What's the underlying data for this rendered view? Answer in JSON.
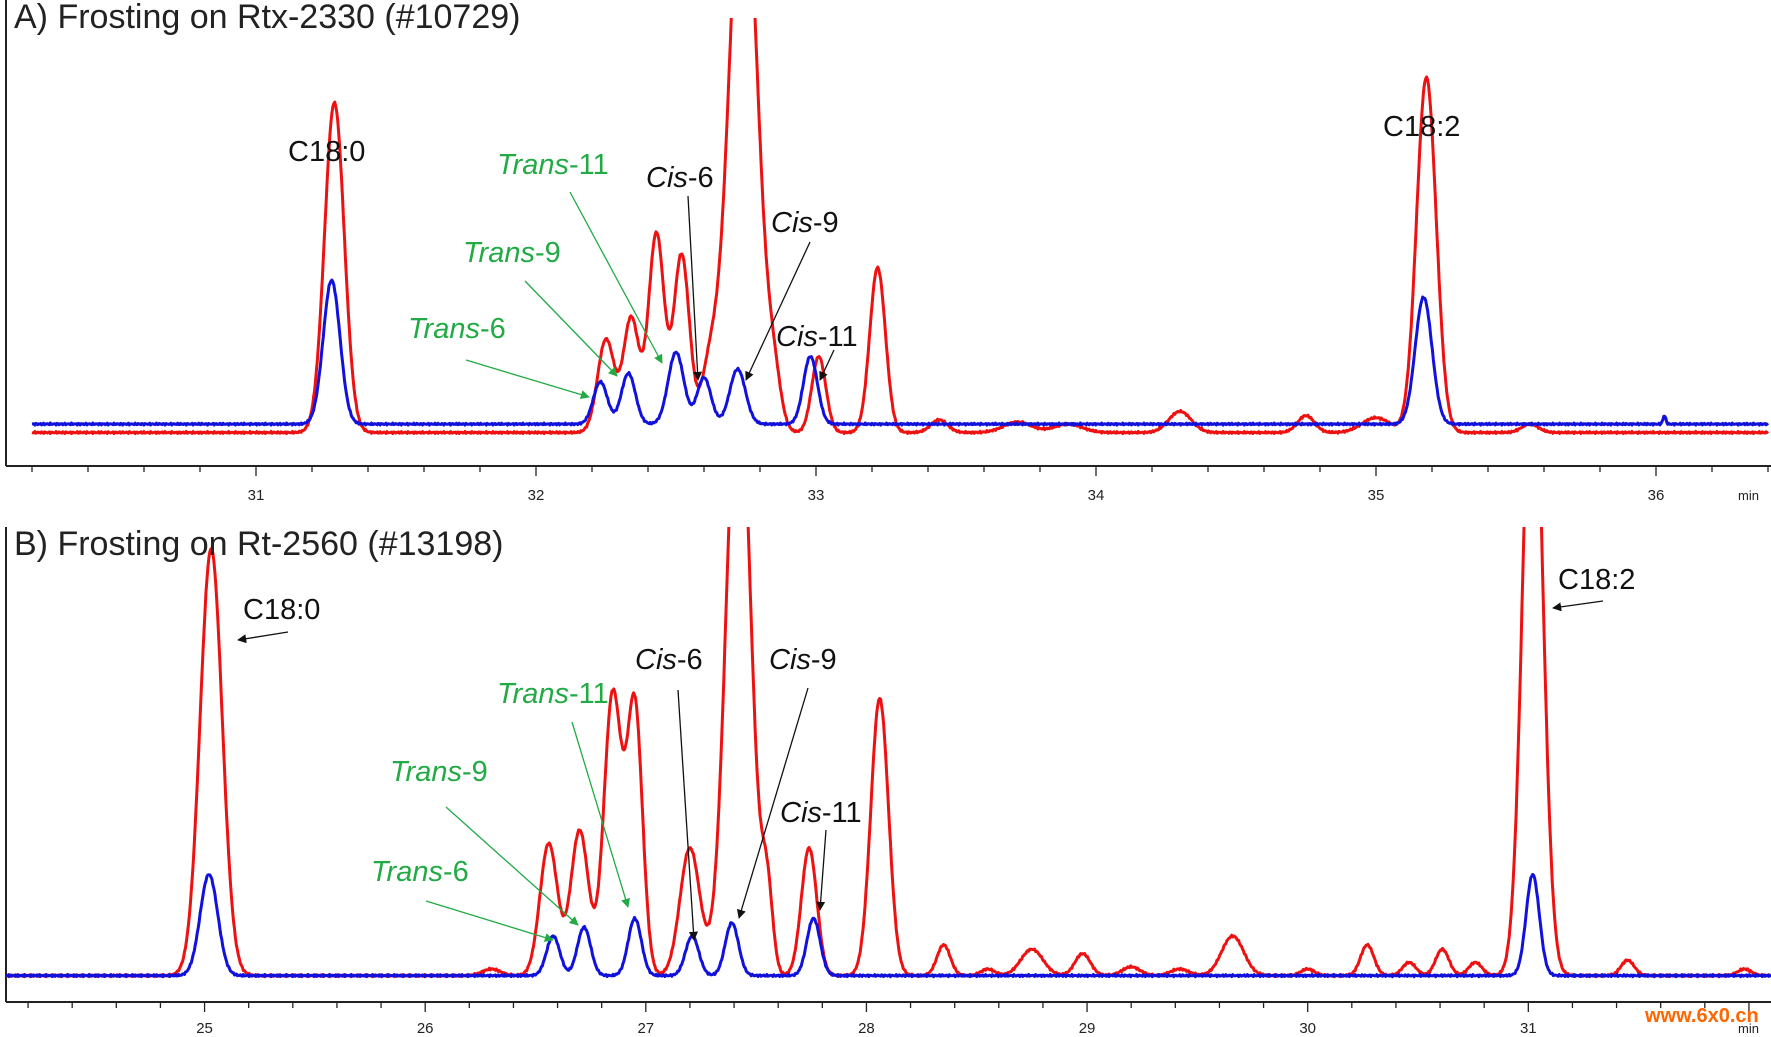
{
  "chart_data": [
    {
      "type": "line",
      "title": "A) Frosting on Rtx-2330 (#10729)",
      "x_unit": "min",
      "xlim": [
        30.2,
        36.4
      ],
      "ylim": [
        0,
        100
      ],
      "x_ticks": [
        31,
        32,
        33,
        34,
        35,
        36
      ],
      "colors": {
        "red": "#ee1111",
        "blue": "#1111dd",
        "green": "#22aa44"
      },
      "series": [
        {
          "color": "#ee1111",
          "baseline": 2,
          "peaks": [
            {
              "x": 31.28,
              "h": 78,
              "w": 0.035
            },
            {
              "x": 32.25,
              "h": 22,
              "w": 0.03
            },
            {
              "x": 32.34,
              "h": 27,
              "w": 0.028
            },
            {
              "x": 32.43,
              "h": 47,
              "w": 0.028
            },
            {
              "x": 32.52,
              "h": 42,
              "w": 0.028
            },
            {
              "x": 32.62,
              "h": 14,
              "w": 0.03
            },
            {
              "x": 32.74,
              "h": 140,
              "w": 0.05
            },
            {
              "x": 32.85,
              "h": 10,
              "w": 0.025
            },
            {
              "x": 33.01,
              "h": 18,
              "w": 0.025
            },
            {
              "x": 33.22,
              "h": 39,
              "w": 0.028
            },
            {
              "x": 33.44,
              "h": 3,
              "w": 0.03
            },
            {
              "x": 33.72,
              "h": 2.5,
              "w": 0.05
            },
            {
              "x": 33.9,
              "h": 2,
              "w": 0.05
            },
            {
              "x": 34.3,
              "h": 5,
              "w": 0.04
            },
            {
              "x": 34.75,
              "h": 4,
              "w": 0.03
            },
            {
              "x": 35.0,
              "h": 3.5,
              "w": 0.05
            },
            {
              "x": 35.18,
              "h": 84,
              "w": 0.035
            },
            {
              "x": 35.55,
              "h": 2,
              "w": 0.03
            }
          ]
        },
        {
          "color": "#1111dd",
          "baseline": 4,
          "peaks": [
            {
              "x": 31.27,
              "h": 34,
              "w": 0.03
            },
            {
              "x": 32.23,
              "h": 10,
              "w": 0.025
            },
            {
              "x": 32.33,
              "h": 12,
              "w": 0.025
            },
            {
              "x": 32.5,
              "h": 17,
              "w": 0.028
            },
            {
              "x": 32.6,
              "h": 11,
              "w": 0.025
            },
            {
              "x": 32.72,
              "h": 13,
              "w": 0.028
            },
            {
              "x": 32.98,
              "h": 16,
              "w": 0.025
            },
            {
              "x": 35.17,
              "h": 30,
              "w": 0.03
            },
            {
              "x": 36.03,
              "h": 2,
              "w": 0.005
            }
          ]
        }
      ],
      "annotations": [
        {
          "label_pre": "",
          "label_italic": "",
          "label_post": "C18:0",
          "color": "black"
        },
        {
          "label_pre": "",
          "label_italic": "Trans",
          "label_post": "-11",
          "color": "green"
        },
        {
          "label_pre": "",
          "label_italic": "Trans",
          "label_post": "-9",
          "color": "green"
        },
        {
          "label_pre": "",
          "label_italic": "Trans",
          "label_post": "-6",
          "color": "green"
        },
        {
          "label_pre": "",
          "label_italic": "Cis",
          "label_post": "-6",
          "color": "black"
        },
        {
          "label_pre": "",
          "label_italic": "Cis",
          "label_post": "-9",
          "color": "black"
        },
        {
          "label_pre": "",
          "label_italic": "Cis",
          "label_post": "-11",
          "color": "black"
        },
        {
          "label_pre": "",
          "label_italic": "",
          "label_post": "C18:2",
          "color": "black"
        }
      ]
    },
    {
      "type": "line",
      "title": "B) Frosting on Rt-2560 (#13198)",
      "x_unit": "min",
      "xlim": [
        24.1,
        32.1
      ],
      "ylim": [
        0,
        100
      ],
      "x_ticks": [
        25,
        26,
        27,
        28,
        29,
        30,
        31
      ],
      "colors": {
        "red": "#ee1111",
        "blue": "#1111dd",
        "green": "#22aa44"
      },
      "series": [
        {
          "color": "#ee1111",
          "baseline": 1,
          "peaks": [
            {
              "x": 25.03,
              "h": 97,
              "w": 0.05
            },
            {
              "x": 26.3,
              "h": 1.5,
              "w": 0.04
            },
            {
              "x": 26.56,
              "h": 30,
              "w": 0.04
            },
            {
              "x": 26.7,
              "h": 33,
              "w": 0.04
            },
            {
              "x": 26.85,
              "h": 64,
              "w": 0.04
            },
            {
              "x": 26.95,
              "h": 61,
              "w": 0.035
            },
            {
              "x": 27.2,
              "h": 29,
              "w": 0.045
            },
            {
              "x": 27.42,
              "h": 140,
              "w": 0.055
            },
            {
              "x": 27.55,
              "h": 18,
              "w": 0.025
            },
            {
              "x": 27.74,
              "h": 29,
              "w": 0.035
            },
            {
              "x": 28.06,
              "h": 63,
              "w": 0.04
            },
            {
              "x": 28.35,
              "h": 7,
              "w": 0.03
            },
            {
              "x": 28.55,
              "h": 1.5,
              "w": 0.03
            },
            {
              "x": 28.75,
              "h": 6,
              "w": 0.05
            },
            {
              "x": 28.98,
              "h": 5,
              "w": 0.035
            },
            {
              "x": 29.2,
              "h": 2,
              "w": 0.04
            },
            {
              "x": 29.42,
              "h": 1.5,
              "w": 0.04
            },
            {
              "x": 29.66,
              "h": 9,
              "w": 0.05
            },
            {
              "x": 30.0,
              "h": 1.5,
              "w": 0.03
            },
            {
              "x": 30.27,
              "h": 7,
              "w": 0.03
            },
            {
              "x": 30.46,
              "h": 3,
              "w": 0.03
            },
            {
              "x": 30.61,
              "h": 6,
              "w": 0.03
            },
            {
              "x": 30.76,
              "h": 3,
              "w": 0.03
            },
            {
              "x": 31.02,
              "h": 150,
              "w": 0.045
            },
            {
              "x": 31.45,
              "h": 3.5,
              "w": 0.03
            },
            {
              "x": 31.98,
              "h": 1.5,
              "w": 0.03
            }
          ]
        },
        {
          "color": "#1111dd",
          "baseline": 1,
          "peaks": [
            {
              "x": 25.02,
              "h": 23,
              "w": 0.04
            },
            {
              "x": 26.58,
              "h": 9,
              "w": 0.03
            },
            {
              "x": 26.72,
              "h": 11,
              "w": 0.03
            },
            {
              "x": 26.95,
              "h": 13,
              "w": 0.03
            },
            {
              "x": 27.21,
              "h": 9,
              "w": 0.03
            },
            {
              "x": 27.39,
              "h": 12,
              "w": 0.03
            },
            {
              "x": 27.76,
              "h": 13,
              "w": 0.03
            },
            {
              "x": 31.02,
              "h": 23,
              "w": 0.03
            }
          ]
        }
      ],
      "annotations": [
        {
          "label_pre": "",
          "label_italic": "",
          "label_post": "C18:0",
          "color": "black"
        },
        {
          "label_pre": "",
          "label_italic": "Trans",
          "label_post": "-11",
          "color": "green"
        },
        {
          "label_pre": "",
          "label_italic": "Trans",
          "label_post": "-9",
          "color": "green"
        },
        {
          "label_pre": "",
          "label_italic": "Trans",
          "label_post": "-6",
          "color": "green"
        },
        {
          "label_pre": "",
          "label_italic": "Cis",
          "label_post": "-6",
          "color": "black"
        },
        {
          "label_pre": "",
          "label_italic": "Cis",
          "label_post": "-9",
          "color": "black"
        },
        {
          "label_pre": "",
          "label_italic": "Cis",
          "label_post": "-11",
          "color": "black"
        },
        {
          "label_pre": "",
          "label_italic": "",
          "label_post": "C18:2",
          "color": "black"
        }
      ]
    }
  ],
  "watermark": "www.6x0.cn"
}
